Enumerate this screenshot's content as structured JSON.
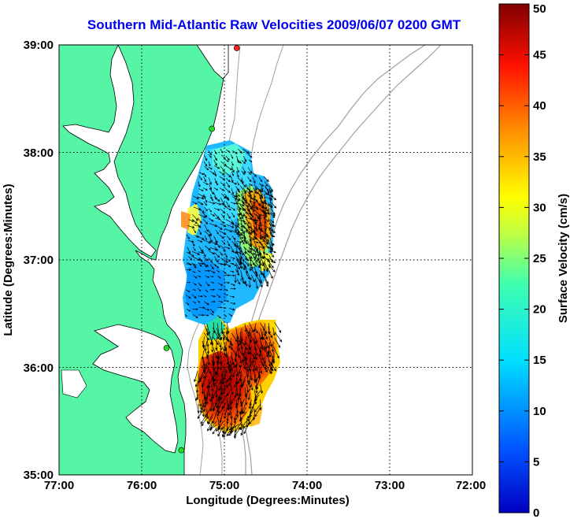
{
  "title": "Southern Mid-Atlantic Raw Velocities 2009/06/07 0200 GMT",
  "x_axis": {
    "label": "Longitude (Degrees:Minutes)",
    "ticks": [
      "77:00",
      "76:00",
      "75:00",
      "74:00",
      "73:00",
      "72:00"
    ],
    "range": [
      -77,
      -72
    ]
  },
  "y_axis": {
    "label": "Latitude (Degrees:Minutes)",
    "ticks": [
      "35:00",
      "36:00",
      "37:00",
      "38:00",
      "39:00"
    ],
    "range": [
      35,
      39
    ]
  },
  "colorbar": {
    "label": "Surface Velocity (cm/s)",
    "ticks": [
      "0",
      "5",
      "10",
      "15",
      "20",
      "25",
      "30",
      "35",
      "40",
      "45",
      "50"
    ],
    "range": [
      0,
      50
    ],
    "colormap": "jet"
  },
  "colors": {
    "title": "#0000ee",
    "land": "#55f5a5",
    "isobath": "#a0a0a0",
    "gridline": "#000000",
    "station": "#22dd22",
    "station_active": "#ff2222"
  },
  "stations": [
    {
      "lon": -74.85,
      "lat": 38.97,
      "status": "active"
    },
    {
      "lon": -75.15,
      "lat": 38.22,
      "status": "normal"
    },
    {
      "lon": -75.7,
      "lat": 36.18,
      "status": "normal"
    },
    {
      "lon": -75.52,
      "lat": 35.23,
      "status": "normal"
    }
  ]
}
